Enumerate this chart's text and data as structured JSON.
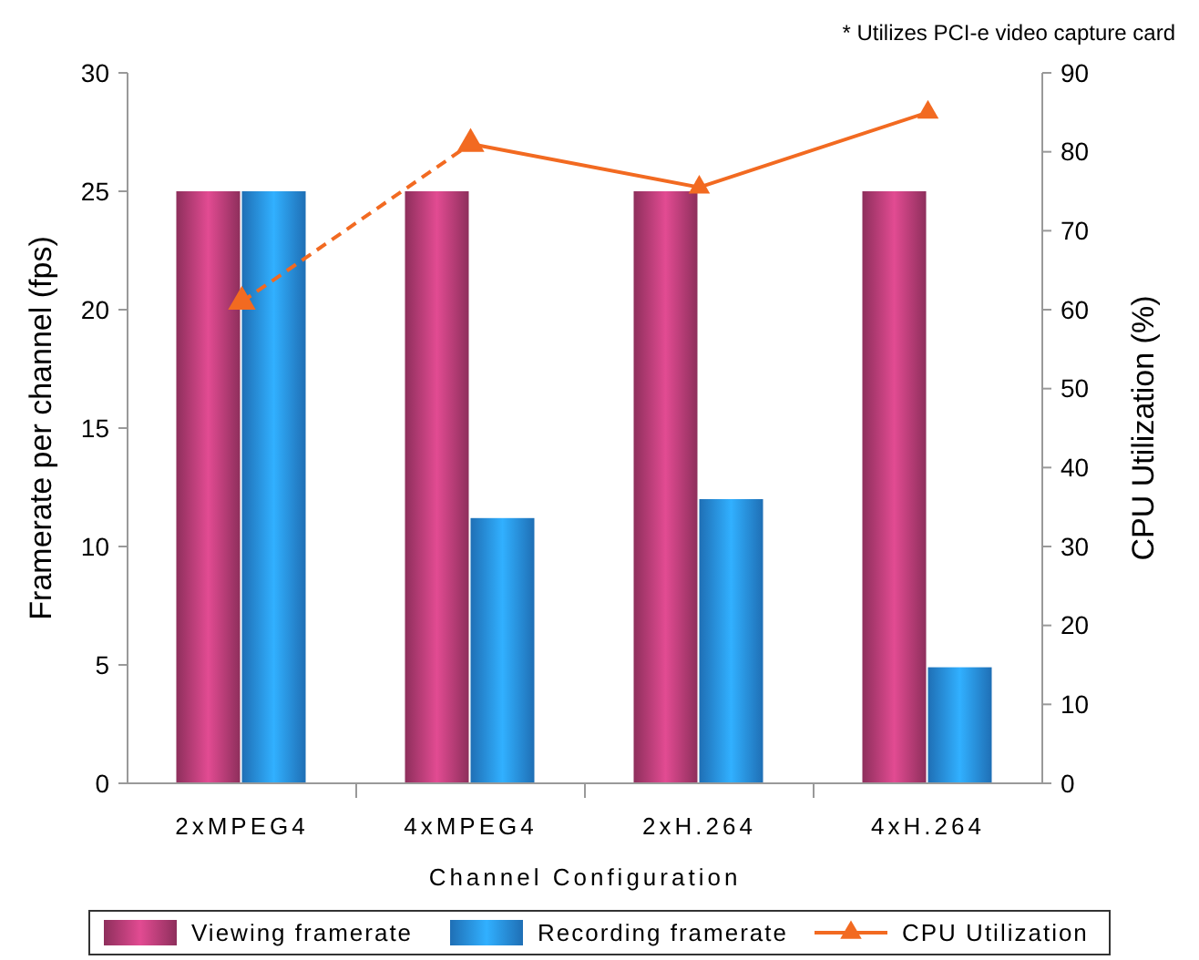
{
  "chart_data": {
    "type": "bar",
    "xlabel": "Channel Configuration",
    "ylabel": "Framerate per channel (fps)",
    "y2label": "CPU Utilization (%)",
    "annotations": [
      "* Utilizes PCI-e video capture card"
    ],
    "categories": [
      "2xMPEG4",
      "4xMPEG4",
      "2xH.264",
      "4xH.264"
    ],
    "series": [
      {
        "name": "Viewing framerate",
        "color": "#8e2f5c",
        "values": [
          25,
          25,
          25,
          25
        ]
      },
      {
        "name": "Recording framerate",
        "color": "#1f6fb5",
        "values": [
          25,
          11.2,
          12,
          4.9
        ]
      },
      {
        "type": "line",
        "axis": "y2",
        "color": "#f26a21",
        "line_style": "dashed",
        "marker": "triangle",
        "values": [
          61,
          81,
          null,
          null
        ]
      },
      {
        "name": "CPU Utilization",
        "type": "line",
        "axis": "y2",
        "color": "#f26a21",
        "line_style": "solid",
        "marker": "triangle",
        "values": [
          null,
          81,
          75.5,
          85
        ]
      }
    ],
    "ylim": [
      0,
      30
    ],
    "yticks": [
      0,
      5,
      10,
      15,
      20,
      25,
      30
    ],
    "y2lim": [
      0,
      90
    ],
    "y2ticks": [
      0,
      10,
      20,
      30,
      40,
      50,
      60,
      70,
      80,
      90
    ],
    "grid": false,
    "legend": "bottom"
  }
}
